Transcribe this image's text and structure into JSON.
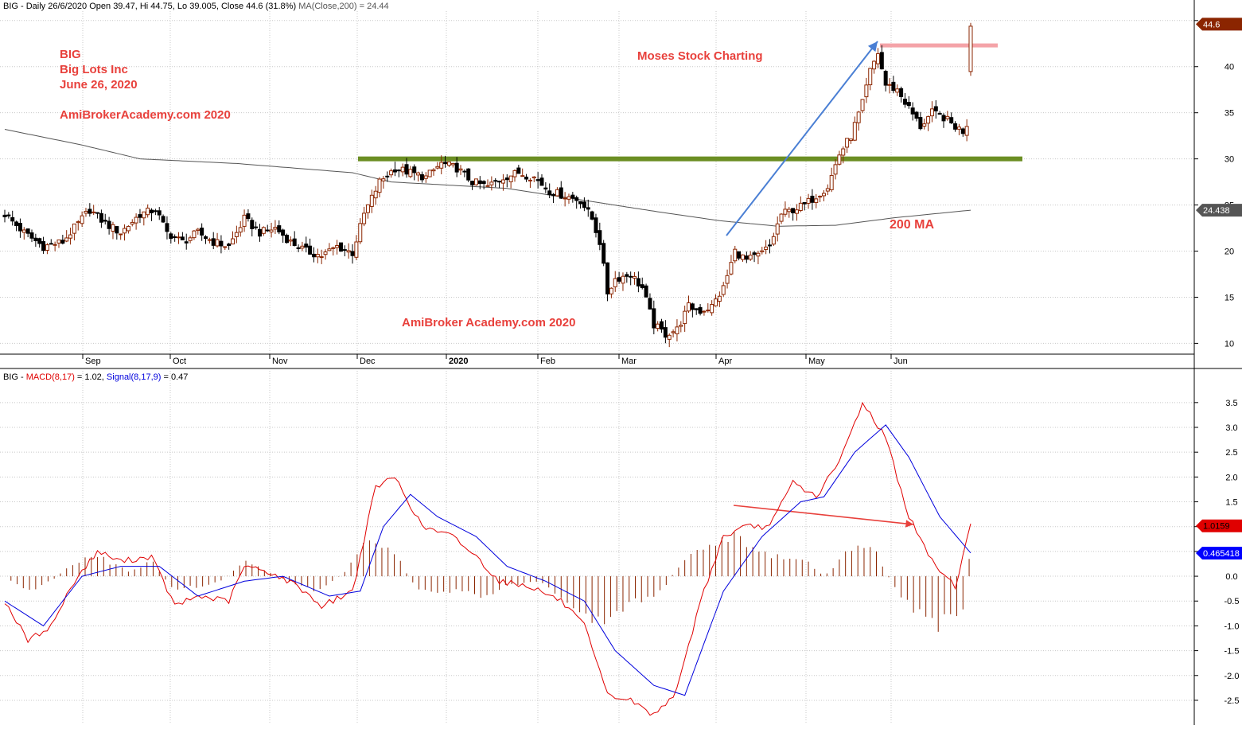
{
  "price_header": {
    "prefix": "BIG - Daily 26/6/2020 Open 39.47, Hi 44.75, Lo 39.005, Close 44.6 (31.8%)",
    "ma_text": "MA(Close,200) = 24.44"
  },
  "annotations": {
    "ticker": "BIG",
    "company": "Big Lots Inc",
    "date": "June 26, 2020",
    "site": "AmiBrokerAcademy.com  2020",
    "moses": "Moses Stock Charting",
    "site2": "AmiBroker Academy.com  2020",
    "ma_label": "200 MA"
  },
  "badges": {
    "last_price": "44.6",
    "ma_value": "24.438",
    "macd_value": "1.0159",
    "signal_value": "0.465418"
  },
  "colors": {
    "up": "#8b2500",
    "down": "#000000",
    "ma": "#555555",
    "support": "#6b8e23",
    "resistance": "#f4a3a8",
    "annotation": "#e8413c",
    "macd": "#e00000",
    "signal": "#0000dd",
    "histogram": "#8b2500",
    "trend_arrow": "#4a7fd4"
  },
  "macd_header": {
    "prefix": "BIG - ",
    "macd": "MACD(8,17)",
    "macd_val": " = 1.02, ",
    "signal": "Signal(8,17,9)",
    "signal_val": " = 0.47"
  },
  "chart_data": [
    {
      "type": "candlestick",
      "title": "BIG - Daily 26/6/2020",
      "x_ticks": [
        "Sep",
        "Oct",
        "Nov",
        "Dec",
        "2020",
        "Feb",
        "Mar",
        "Apr",
        "May",
        "Jun"
      ],
      "ylim": [
        9,
        45.5
      ],
      "y_ticks": [
        10,
        15,
        20,
        25,
        30,
        35,
        40,
        45
      ],
      "anchors": [
        {
          "d": 0,
          "p": 24
        },
        {
          "d": 5,
          "p": 22
        },
        {
          "d": 10,
          "p": 20.5
        },
        {
          "d": 15,
          "p": 21
        },
        {
          "d": 18,
          "p": 22.5
        },
        {
          "d": 22,
          "p": 24.5
        },
        {
          "d": 26,
          "p": 23
        },
        {
          "d": 30,
          "p": 22
        },
        {
          "d": 35,
          "p": 24
        },
        {
          "d": 39,
          "p": 24.5
        },
        {
          "d": 42,
          "p": 22
        },
        {
          "d": 46,
          "p": 21
        },
        {
          "d": 50,
          "p": 22
        },
        {
          "d": 54,
          "p": 21
        },
        {
          "d": 58,
          "p": 20.5
        },
        {
          "d": 62,
          "p": 23.5
        },
        {
          "d": 66,
          "p": 22
        },
        {
          "d": 70,
          "p": 22.5
        },
        {
          "d": 74,
          "p": 21
        },
        {
          "d": 78,
          "p": 20
        },
        {
          "d": 82,
          "p": 19.5
        },
        {
          "d": 86,
          "p": 20.5
        },
        {
          "d": 90,
          "p": 19.8
        },
        {
          "d": 93,
          "p": 24
        },
        {
          "d": 97,
          "p": 27.5
        },
        {
          "d": 101,
          "p": 29
        },
        {
          "d": 105,
          "p": 28.5
        },
        {
          "d": 109,
          "p": 28
        },
        {
          "d": 113,
          "p": 29.5
        },
        {
          "d": 117,
          "p": 29
        },
        {
          "d": 121,
          "p": 27.5
        },
        {
          "d": 125,
          "p": 27
        },
        {
          "d": 129,
          "p": 28
        },
        {
          "d": 133,
          "p": 28.5
        },
        {
          "d": 137,
          "p": 28
        },
        {
          "d": 141,
          "p": 26.5
        },
        {
          "d": 145,
          "p": 26
        },
        {
          "d": 149,
          "p": 25.5
        },
        {
          "d": 152,
          "p": 23.5
        },
        {
          "d": 154,
          "p": 21
        },
        {
          "d": 156,
          "p": 15.5
        },
        {
          "d": 158,
          "p": 17
        },
        {
          "d": 162,
          "p": 17.5
        },
        {
          "d": 165,
          "p": 16
        },
        {
          "d": 168,
          "p": 12
        },
        {
          "d": 171,
          "p": 11
        },
        {
          "d": 174,
          "p": 11.5
        },
        {
          "d": 177,
          "p": 14
        },
        {
          "d": 180,
          "p": 13.5
        },
        {
          "d": 183,
          "p": 14
        },
        {
          "d": 186,
          "p": 16
        },
        {
          "d": 189,
          "p": 20
        },
        {
          "d": 192,
          "p": 19
        },
        {
          "d": 195,
          "p": 19.5
        },
        {
          "d": 198,
          "p": 20.5
        },
        {
          "d": 201,
          "p": 24
        },
        {
          "d": 204,
          "p": 24.5
        },
        {
          "d": 207,
          "p": 25
        },
        {
          "d": 210,
          "p": 26
        },
        {
          "d": 213,
          "p": 27
        },
        {
          "d": 216,
          "p": 30.5
        },
        {
          "d": 219,
          "p": 32.5
        },
        {
          "d": 222,
          "p": 36
        },
        {
          "d": 224,
          "p": 39.5
        },
        {
          "d": 226,
          "p": 41.5
        },
        {
          "d": 228,
          "p": 38
        },
        {
          "d": 231,
          "p": 37.5
        },
        {
          "d": 234,
          "p": 35.5
        },
        {
          "d": 237,
          "p": 33.5
        },
        {
          "d": 240,
          "p": 35
        },
        {
          "d": 243,
          "p": 34.5
        },
        {
          "d": 246,
          "p": 33.5
        },
        {
          "d": 248,
          "p": 33
        },
        {
          "d": 249,
          "p": 33.8
        },
        {
          "d": 250,
          "p": 44.6
        }
      ],
      "ma200": [
        {
          "d": 0,
          "p": 33.2
        },
        {
          "d": 20,
          "p": 31.5
        },
        {
          "d": 35,
          "p": 30
        },
        {
          "d": 60,
          "p": 29.5
        },
        {
          "d": 90,
          "p": 28.5
        },
        {
          "d": 100,
          "p": 27.5
        },
        {
          "d": 130,
          "p": 26.8
        },
        {
          "d": 150,
          "p": 25.5
        },
        {
          "d": 170,
          "p": 24.2
        },
        {
          "d": 185,
          "p": 23.3
        },
        {
          "d": 200,
          "p": 22.7
        },
        {
          "d": 215,
          "p": 22.8
        },
        {
          "d": 230,
          "p": 23.6
        },
        {
          "d": 250,
          "p": 24.44
        }
      ],
      "support_level": 30,
      "resistance_level": 42.3,
      "last_close": 44.6,
      "ma_last": 24.438
    },
    {
      "type": "line",
      "title": "MACD(8,17) Signal(8,17,9)",
      "ylim": [
        -2.95,
        3.85
      ],
      "y_ticks": [
        -2.5,
        -2.0,
        -1.5,
        -1.0,
        -0.5,
        0.0,
        0.5,
        1.0,
        1.5,
        2.0,
        2.5,
        3.0,
        3.5
      ],
      "series": [
        {
          "name": "MACD(8,17)",
          "values": [
            {
              "d": 0,
              "v": -0.5
            },
            {
              "d": 6,
              "v": -1.3
            },
            {
              "d": 12,
              "v": -1.0
            },
            {
              "d": 18,
              "v": -0.1
            },
            {
              "d": 24,
              "v": 0.5
            },
            {
              "d": 30,
              "v": 0.3
            },
            {
              "d": 38,
              "v": 0.4
            },
            {
              "d": 44,
              "v": -0.6
            },
            {
              "d": 50,
              "v": -0.4
            },
            {
              "d": 58,
              "v": -0.5
            },
            {
              "d": 62,
              "v": 0.2
            },
            {
              "d": 68,
              "v": 0.1
            },
            {
              "d": 76,
              "v": -0.2
            },
            {
              "d": 82,
              "v": -0.6
            },
            {
              "d": 90,
              "v": -0.3
            },
            {
              "d": 96,
              "v": 1.8
            },
            {
              "d": 101,
              "v": 2.0
            },
            {
              "d": 108,
              "v": 1.0
            },
            {
              "d": 116,
              "v": 0.8
            },
            {
              "d": 122,
              "v": 0.4
            },
            {
              "d": 128,
              "v": -0.1
            },
            {
              "d": 136,
              "v": -0.2
            },
            {
              "d": 144,
              "v": -0.5
            },
            {
              "d": 150,
              "v": -1.0
            },
            {
              "d": 156,
              "v": -2.4
            },
            {
              "d": 162,
              "v": -2.5
            },
            {
              "d": 168,
              "v": -2.8
            },
            {
              "d": 174,
              "v": -2.3
            },
            {
              "d": 180,
              "v": -0.5
            },
            {
              "d": 186,
              "v": 0.8
            },
            {
              "d": 192,
              "v": 1.0
            },
            {
              "d": 198,
              "v": 1.0
            },
            {
              "d": 204,
              "v": 1.9
            },
            {
              "d": 210,
              "v": 1.6
            },
            {
              "d": 216,
              "v": 2.3
            },
            {
              "d": 222,
              "v": 3.5
            },
            {
              "d": 228,
              "v": 2.8
            },
            {
              "d": 234,
              "v": 1.2
            },
            {
              "d": 240,
              "v": 0.3
            },
            {
              "d": 246,
              "v": -0.2
            },
            {
              "d": 250,
              "v": 1.02
            }
          ]
        },
        {
          "name": "Signal(8,17,9)",
          "values": [
            {
              "d": 0,
              "v": -0.5
            },
            {
              "d": 10,
              "v": -1.0
            },
            {
              "d": 20,
              "v": 0.0
            },
            {
              "d": 30,
              "v": 0.2
            },
            {
              "d": 40,
              "v": 0.2
            },
            {
              "d": 50,
              "v": -0.4
            },
            {
              "d": 62,
              "v": -0.1
            },
            {
              "d": 72,
              "v": 0.0
            },
            {
              "d": 84,
              "v": -0.4
            },
            {
              "d": 92,
              "v": -0.3
            },
            {
              "d": 98,
              "v": 1.0
            },
            {
              "d": 105,
              "v": 1.65
            },
            {
              "d": 112,
              "v": 1.2
            },
            {
              "d": 122,
              "v": 0.8
            },
            {
              "d": 130,
              "v": 0.2
            },
            {
              "d": 140,
              "v": -0.1
            },
            {
              "d": 150,
              "v": -0.5
            },
            {
              "d": 158,
              "v": -1.5
            },
            {
              "d": 168,
              "v": -2.2
            },
            {
              "d": 176,
              "v": -2.4
            },
            {
              "d": 186,
              "v": -0.3
            },
            {
              "d": 196,
              "v": 0.8
            },
            {
              "d": 206,
              "v": 1.5
            },
            {
              "d": 212,
              "v": 1.6
            },
            {
              "d": 220,
              "v": 2.5
            },
            {
              "d": 228,
              "v": 3.05
            },
            {
              "d": 234,
              "v": 2.4
            },
            {
              "d": 242,
              "v": 1.2
            },
            {
              "d": 250,
              "v": 0.47
            }
          ]
        }
      ],
      "histogram": [
        {
          "d": 0,
          "v": 0
        },
        {
          "d": 6,
          "v": -0.3
        },
        {
          "d": 12,
          "v": -0.1
        },
        {
          "d": 18,
          "v": 0.3
        },
        {
          "d": 24,
          "v": 0.4
        },
        {
          "d": 32,
          "v": 0.1
        },
        {
          "d": 38,
          "v": 0.3
        },
        {
          "d": 44,
          "v": -0.3
        },
        {
          "d": 50,
          "v": -0.2
        },
        {
          "d": 56,
          "v": -0.1
        },
        {
          "d": 62,
          "v": 0.3
        },
        {
          "d": 68,
          "v": 0.1
        },
        {
          "d": 76,
          "v": -0.2
        },
        {
          "d": 82,
          "v": -0.3
        },
        {
          "d": 88,
          "v": 0.1
        },
        {
          "d": 94,
          "v": 0.8
        },
        {
          "d": 100,
          "v": 0.6
        },
        {
          "d": 106,
          "v": -0.2
        },
        {
          "d": 112,
          "v": -0.4
        },
        {
          "d": 118,
          "v": -0.3
        },
        {
          "d": 124,
          "v": -0.4
        },
        {
          "d": 130,
          "v": -0.2
        },
        {
          "d": 138,
          "v": -0.1
        },
        {
          "d": 146,
          "v": -0.5
        },
        {
          "d": 152,
          "v": -1.0
        },
        {
          "d": 158,
          "v": -0.8
        },
        {
          "d": 164,
          "v": -0.5
        },
        {
          "d": 170,
          "v": -0.3
        },
        {
          "d": 176,
          "v": 0.4
        },
        {
          "d": 182,
          "v": 0.6
        },
        {
          "d": 188,
          "v": 0.9
        },
        {
          "d": 194,
          "v": 0.6
        },
        {
          "d": 200,
          "v": 0.4
        },
        {
          "d": 206,
          "v": 0.4
        },
        {
          "d": 212,
          "v": 0.0
        },
        {
          "d": 218,
          "v": 0.5
        },
        {
          "d": 224,
          "v": 0.7
        },
        {
          "d": 230,
          "v": -0.2
        },
        {
          "d": 236,
          "v": -0.8
        },
        {
          "d": 242,
          "v": -1.0
        },
        {
          "d": 248,
          "v": -0.6
        },
        {
          "d": 250,
          "v": 0.55
        }
      ],
      "macd_last": 1.0159,
      "signal_last": 0.465418
    }
  ]
}
